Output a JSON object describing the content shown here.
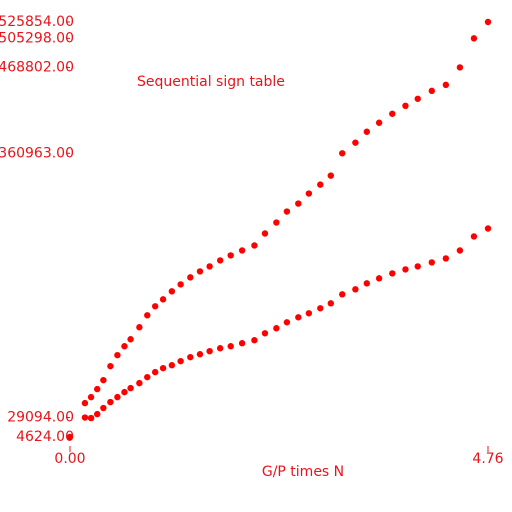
{
  "chart_data": {
    "type": "scatter",
    "title": "Sequential sign table",
    "x_label": "G/P times N",
    "x": [
      0,
      0.17,
      0.24,
      0.31,
      0.38,
      0.46,
      0.54,
      0.62,
      0.69,
      0.79,
      0.88,
      0.97,
      1.06,
      1.16,
      1.26,
      1.37,
      1.48,
      1.59,
      1.71,
      1.83,
      1.96,
      2.1,
      2.22,
      2.35,
      2.47,
      2.6,
      2.72,
      2.85,
      2.97,
      3.1,
      3.25,
      3.38,
      3.52,
      3.67,
      3.82,
      3.96,
      4.12,
      4.28,
      4.44,
      4.6,
      4.76
    ],
    "series": [
      {
        "color": "#ff0000",
        "values": [
          null,
          47200,
          54700,
          64800,
          76000,
          93600,
          107400,
          118600,
          127400,
          142500,
          157500,
          168800,
          177500,
          187600,
          196300,
          205100,
          212600,
          218900,
          226400,
          232700,
          238900,
          245200,
          260200,
          274000,
          287800,
          297800,
          310400,
          321600,
          332900,
          360963,
          374300,
          388000,
          399300,
          410600,
          420600,
          429400,
          439400,
          446900,
          468802,
          505298,
          525854
        ]
      },
      {
        "color": "#ff0000",
        "values": [
          4624,
          29094,
          28400,
          33400,
          41000,
          48500,
          54700,
          61000,
          66000,
          72300,
          79800,
          86100,
          91100,
          94800,
          99900,
          104900,
          108600,
          112400,
          116100,
          118600,
          122400,
          126200,
          134900,
          141200,
          148700,
          155000,
          160000,
          166300,
          172500,
          183800,
          190100,
          197600,
          203900,
          210100,
          215100,
          218900,
          223900,
          228900,
          238900,
          256500,
          266500
        ]
      }
    ],
    "xlim": [
      0,
      4.76
    ],
    "xticks": [
      {
        "value": 0,
        "label": "0.00"
      },
      {
        "value": 4.76,
        "label": "4.76"
      }
    ],
    "ylim": [
      4624,
      525854
    ],
    "yticks": [
      {
        "value": 4624,
        "label": "4624.00"
      },
      {
        "value": 29094,
        "label": "29094.00"
      },
      {
        "value": 360963,
        "label": "360963.00"
      },
      {
        "value": 468802,
        "label": "468802.00"
      },
      {
        "value": 505298,
        "label": "505298.00"
      },
      {
        "value": 525854,
        "label": "525854.00"
      }
    ]
  }
}
